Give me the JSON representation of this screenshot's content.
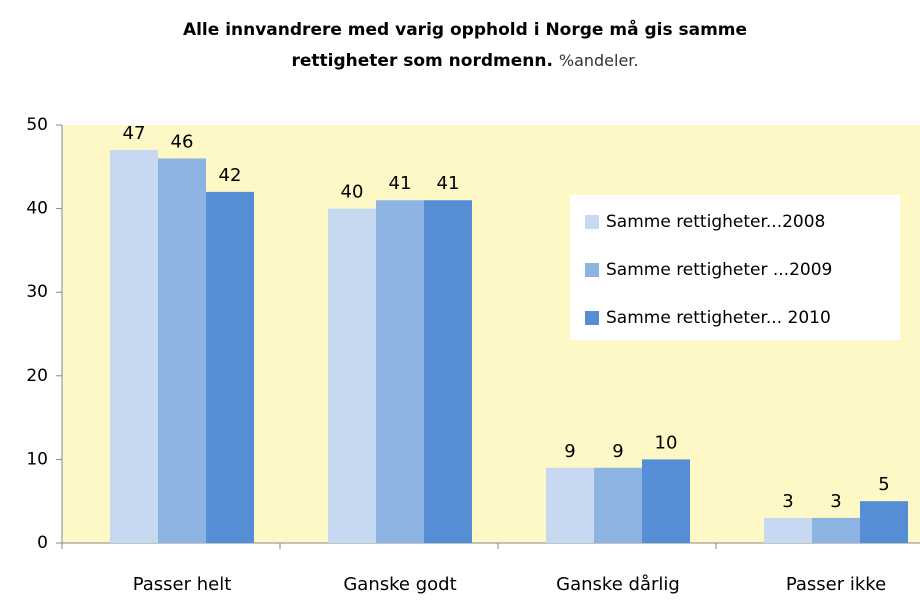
{
  "chart_data": {
    "type": "bar",
    "title_lines": [
      "Alle innvandrere med varig opphold i Norge må gis samme",
      "rettigheter som nordmenn."
    ],
    "subtitle": "%andeler.",
    "categories": [
      "Passer helt",
      "Ganske godt",
      "Ganske dårlig",
      "Passer ikke"
    ],
    "series": [
      {
        "name": "Samme rettigheter...2008",
        "color": "#c6d9f1",
        "values": [
          47,
          40,
          9,
          3
        ]
      },
      {
        "name": "Samme rettigheter ...2009",
        "color": "#8db3e2",
        "values": [
          46,
          41,
          9,
          3
        ]
      },
      {
        "name": "Samme rettigheter... 2010",
        "color": "#558ed5",
        "values": [
          42,
          41,
          10,
          5
        ]
      }
    ],
    "ylim": [
      0,
      50
    ],
    "yticks": [
      0,
      10,
      20,
      30,
      40,
      50
    ],
    "legend": "right"
  }
}
